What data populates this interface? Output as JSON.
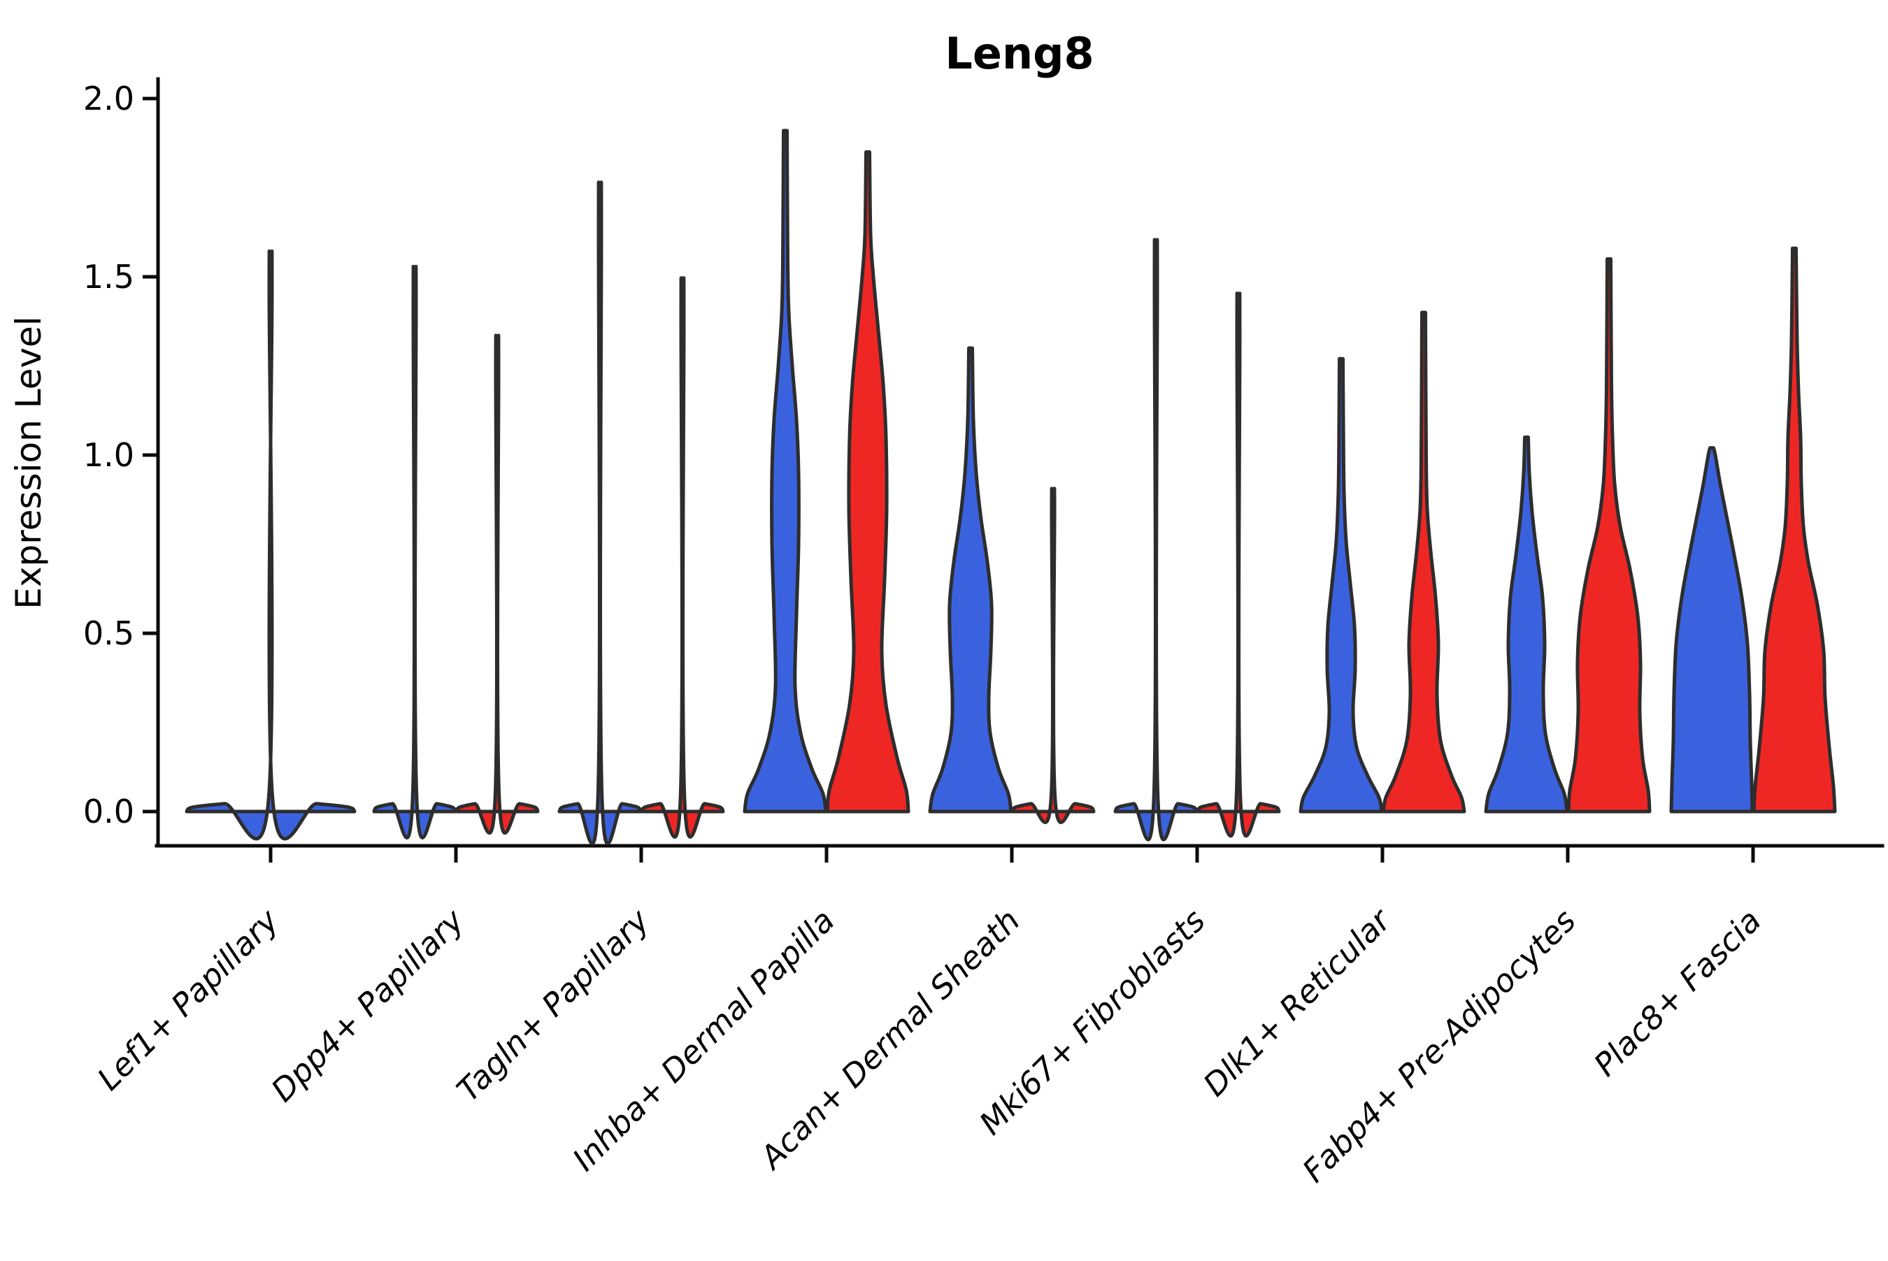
{
  "chart_data": {
    "type": "violin",
    "title": "Leng8",
    "ylabel": "Expression Level",
    "ylim": [
      0.0,
      2.0
    ],
    "grid": false,
    "legend": "none",
    "ytick_labels": [
      "2.0",
      "1.5",
      "1.0",
      "0.5",
      "0.0"
    ],
    "ytick_values": [
      2.0,
      1.5,
      1.0,
      0.5,
      0.0
    ],
    "categories": [
      "Lef1+ Papillary",
      "Dpp4+ Papillary",
      "Tagln+ Papillary",
      "Inhba+ Dermal Papilla",
      "Acan+ Dermal Sheath",
      "Mki67+ Fibroblasts",
      "Dlk1+ Reticular",
      "Fabp4+ Pre-Adipocytes",
      "Plac8+ Fascia"
    ],
    "colors": {
      "split_left_blue": "#3B62DE",
      "split_right_red": "#EE2725",
      "outline": "#2D2D2D"
    },
    "profile_units": "each profile point is [expression_value, half_width]; half_width 58 = full half-violin, 120 = full-width single violin",
    "groups": [
      {
        "category": "Lef1+ Papillary",
        "violins": [
          {
            "split": "center",
            "color": "#3B62DE",
            "max_expression": 1.48,
            "profile": [
              [
                0,
                120
              ],
              [
                0.012,
                112
              ],
              [
                0.022,
                66
              ],
              [
                0.032,
                3
              ],
              [
                1.46,
                2
              ],
              [
                1.48,
                2
              ]
            ]
          }
        ]
      },
      {
        "category": "Dpp4+ Papillary",
        "violins": [
          {
            "split": "left",
            "color": "#3B62DE",
            "max_expression": 1.44,
            "profile": [
              [
                0,
                58
              ],
              [
                0.012,
                54
              ],
              [
                0.022,
                32
              ],
              [
                0.032,
                3
              ],
              [
                1.42,
                2
              ],
              [
                1.44,
                2
              ]
            ]
          },
          {
            "split": "right",
            "color": "#EE2725",
            "max_expression": 1.26,
            "profile": [
              [
                0,
                58
              ],
              [
                0.012,
                54
              ],
              [
                0.022,
                32
              ],
              [
                0.032,
                3
              ],
              [
                1.24,
                2
              ],
              [
                1.26,
                2
              ]
            ]
          }
        ]
      },
      {
        "category": "Tagln+ Papillary",
        "violins": [
          {
            "split": "left",
            "color": "#3B62DE",
            "max_expression": 1.66,
            "profile": [
              [
                0,
                58
              ],
              [
                0.012,
                54
              ],
              [
                0.022,
                32
              ],
              [
                0.032,
                3
              ],
              [
                1.64,
                2
              ],
              [
                1.66,
                2
              ]
            ]
          },
          {
            "split": "right",
            "color": "#EE2725",
            "max_expression": 1.41,
            "profile": [
              [
                0,
                58
              ],
              [
                0.012,
                54
              ],
              [
                0.022,
                32
              ],
              [
                0.032,
                3
              ],
              [
                1.39,
                2
              ],
              [
                1.41,
                2
              ]
            ]
          }
        ]
      },
      {
        "category": "Inhba+ Dermal Papilla",
        "violins": [
          {
            "split": "left",
            "color": "#3B62DE",
            "max_expression": 1.91,
            "profile": [
              [
                0,
                58
              ],
              [
                0.05,
                54
              ],
              [
                0.12,
                38
              ],
              [
                0.22,
                22
              ],
              [
                0.35,
                14
              ],
              [
                0.55,
                16
              ],
              [
                0.75,
                19
              ],
              [
                0.95,
                19
              ],
              [
                1.1,
                16
              ],
              [
                1.25,
                10
              ],
              [
                1.4,
                5
              ],
              [
                1.55,
                3.5
              ],
              [
                1.91,
                2.5
              ]
            ]
          },
          {
            "split": "right",
            "color": "#EE2725",
            "max_expression": 1.85,
            "profile": [
              [
                0,
                58
              ],
              [
                0.06,
                55
              ],
              [
                0.15,
                42
              ],
              [
                0.3,
                26
              ],
              [
                0.45,
                20
              ],
              [
                0.65,
                24
              ],
              [
                0.85,
                27
              ],
              [
                1.05,
                26
              ],
              [
                1.2,
                22
              ],
              [
                1.35,
                15
              ],
              [
                1.5,
                8
              ],
              [
                1.62,
                4
              ],
              [
                1.85,
                2.5
              ]
            ]
          }
        ]
      },
      {
        "category": "Acan+ Dermal Sheath",
        "violins": [
          {
            "split": "left",
            "color": "#3B62DE",
            "max_expression": 1.3,
            "profile": [
              [
                0,
                58
              ],
              [
                0.05,
                54
              ],
              [
                0.12,
                40
              ],
              [
                0.22,
                28
              ],
              [
                0.32,
                26
              ],
              [
                0.45,
                29
              ],
              [
                0.58,
                30
              ],
              [
                0.7,
                24
              ],
              [
                0.82,
                15
              ],
              [
                0.95,
                8
              ],
              [
                1.1,
                4
              ],
              [
                1.3,
                2.5
              ]
            ]
          },
          {
            "split": "right",
            "color": "#EE2725",
            "max_expression": 0.86,
            "profile": [
              [
                0,
                58
              ],
              [
                0.012,
                54
              ],
              [
                0.022,
                32
              ],
              [
                0.032,
                3
              ],
              [
                0.84,
                2
              ],
              [
                0.86,
                2
              ]
            ]
          }
        ]
      },
      {
        "category": "Mki67+ Fibroblasts",
        "violins": [
          {
            "split": "left",
            "color": "#3B62DE",
            "max_expression": 1.51,
            "profile": [
              [
                0,
                58
              ],
              [
                0.012,
                54
              ],
              [
                0.022,
                32
              ],
              [
                0.032,
                3
              ],
              [
                1.49,
                2
              ],
              [
                1.51,
                2
              ]
            ]
          },
          {
            "split": "right",
            "color": "#EE2725",
            "max_expression": 1.37,
            "profile": [
              [
                0,
                58
              ],
              [
                0.012,
                54
              ],
              [
                0.022,
                32
              ],
              [
                0.032,
                3
              ],
              [
                1.35,
                2
              ],
              [
                1.37,
                2
              ]
            ]
          }
        ]
      },
      {
        "category": "Dlk1+ Reticular",
        "violins": [
          {
            "split": "left",
            "color": "#3B62DE",
            "max_expression": 1.27,
            "profile": [
              [
                0,
                58
              ],
              [
                0.04,
                54
              ],
              [
                0.1,
                38
              ],
              [
                0.18,
                22
              ],
              [
                0.28,
                17
              ],
              [
                0.4,
                20
              ],
              [
                0.52,
                19
              ],
              [
                0.64,
                13
              ],
              [
                0.76,
                7
              ],
              [
                0.9,
                4
              ],
              [
                1.1,
                3
              ],
              [
                1.27,
                2.5
              ]
            ]
          },
          {
            "split": "right",
            "color": "#EE2725",
            "max_expression": 1.4,
            "profile": [
              [
                0,
                58
              ],
              [
                0.04,
                54
              ],
              [
                0.1,
                40
              ],
              [
                0.2,
                24
              ],
              [
                0.33,
                19
              ],
              [
                0.47,
                21
              ],
              [
                0.6,
                17
              ],
              [
                0.73,
                10
              ],
              [
                0.85,
                5
              ],
              [
                1.0,
                3.5
              ],
              [
                1.4,
                2.5
              ]
            ]
          }
        ]
      },
      {
        "category": "Fabp4+ Pre-Adipocytes",
        "violins": [
          {
            "split": "left",
            "color": "#3B62DE",
            "max_expression": 1.05,
            "profile": [
              [
                0,
                58
              ],
              [
                0.05,
                54
              ],
              [
                0.12,
                40
              ],
              [
                0.22,
                27
              ],
              [
                0.34,
                24
              ],
              [
                0.47,
                26
              ],
              [
                0.6,
                23
              ],
              [
                0.72,
                15
              ],
              [
                0.84,
                8
              ],
              [
                0.95,
                4
              ],
              [
                1.05,
                2.5
              ]
            ]
          },
          {
            "split": "right",
            "color": "#EE2725",
            "max_expression": 1.55,
            "profile": [
              [
                0,
                58
              ],
              [
                0.06,
                56
              ],
              [
                0.15,
                48
              ],
              [
                0.28,
                44
              ],
              [
                0.42,
                45
              ],
              [
                0.55,
                41
              ],
              [
                0.68,
                30
              ],
              [
                0.8,
                16
              ],
              [
                0.92,
                8
              ],
              [
                1.05,
                5
              ],
              [
                1.2,
                3.5
              ],
              [
                1.55,
                2.5
              ]
            ]
          }
        ]
      },
      {
        "category": "Plac8+ Fascia",
        "violins": [
          {
            "split": "left",
            "color": "#3B62DE",
            "max_expression": 1.02,
            "profile": [
              [
                0,
                58
              ],
              [
                0.08,
                57
              ],
              [
                0.2,
                55
              ],
              [
                0.33,
                54
              ],
              [
                0.47,
                51
              ],
              [
                0.6,
                43
              ],
              [
                0.72,
                32
              ],
              [
                0.82,
                22
              ],
              [
                0.92,
                12
              ],
              [
                1.0,
                5
              ],
              [
                1.02,
                2.5
              ]
            ]
          },
          {
            "split": "right",
            "color": "#EE2725",
            "max_expression": 1.58,
            "profile": [
              [
                0,
                58
              ],
              [
                0.07,
                56
              ],
              [
                0.18,
                50
              ],
              [
                0.32,
                44
              ],
              [
                0.45,
                42
              ],
              [
                0.58,
                33
              ],
              [
                0.7,
                20
              ],
              [
                0.8,
                13
              ],
              [
                0.92,
                10
              ],
              [
                1.05,
                9
              ],
              [
                1.18,
                6
              ],
              [
                1.32,
                4
              ],
              [
                1.58,
                2.5
              ]
            ]
          }
        ]
      }
    ]
  }
}
